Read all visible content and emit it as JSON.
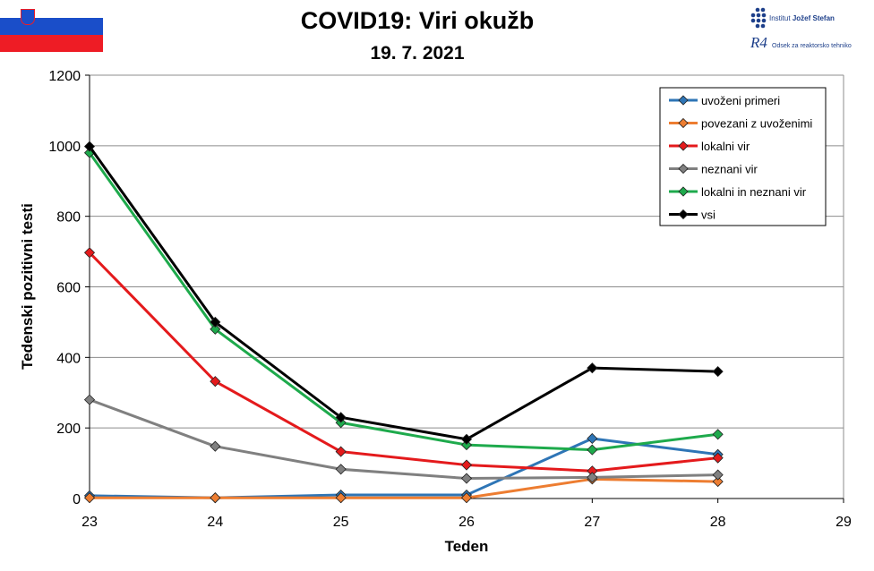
{
  "header": {
    "title": "COVID19: Viri okužb",
    "date": "19. 7. 2021"
  },
  "logo": {
    "institute_prefix": "Institut",
    "institute_name": "Jožef Stefan",
    "department": "Odsek za reaktorsko tehniko",
    "mark": "R4"
  },
  "chart_data": {
    "type": "line",
    "xlabel": "Teden",
    "ylabel": "Tedenski pozitivni testi",
    "xlim": [
      23,
      29
    ],
    "ylim": [
      0,
      1200
    ],
    "x_ticks": [
      23,
      24,
      25,
      26,
      27,
      28,
      29
    ],
    "y_ticks": [
      0,
      200,
      400,
      600,
      800,
      1000,
      1200
    ],
    "grid": true,
    "legend_position": "top-right",
    "series": [
      {
        "name": "uvoženi primeri",
        "color": "#2e75b6",
        "x": [
          23,
          24,
          25,
          26,
          27,
          28
        ],
        "values": [
          8,
          2,
          10,
          10,
          170,
          125
        ]
      },
      {
        "name": "povezani z uvoženimi",
        "color": "#ed7d31",
        "x": [
          23,
          24,
          25,
          26,
          27,
          28
        ],
        "values": [
          2,
          2,
          2,
          2,
          55,
          48
        ]
      },
      {
        "name": "lokalni vir",
        "color": "#e41a1c",
        "x": [
          23,
          24,
          25,
          26,
          27,
          28
        ],
        "values": [
          697,
          332,
          133,
          95,
          78,
          115
        ]
      },
      {
        "name": "neznani vir",
        "color": "#808080",
        "x": [
          23,
          24,
          25,
          26,
          27,
          28
        ],
        "values": [
          280,
          148,
          83,
          57,
          60,
          67
        ]
      },
      {
        "name": "lokalni in neznani vir",
        "color": "#1eaa4c",
        "x": [
          23,
          24,
          25,
          26,
          27,
          28
        ],
        "values": [
          980,
          480,
          215,
          152,
          138,
          182
        ]
      },
      {
        "name": "vsi",
        "color": "#000000",
        "x": [
          23,
          24,
          25,
          26,
          27,
          28
        ],
        "values": [
          998,
          500,
          230,
          168,
          370,
          360
        ]
      }
    ]
  }
}
